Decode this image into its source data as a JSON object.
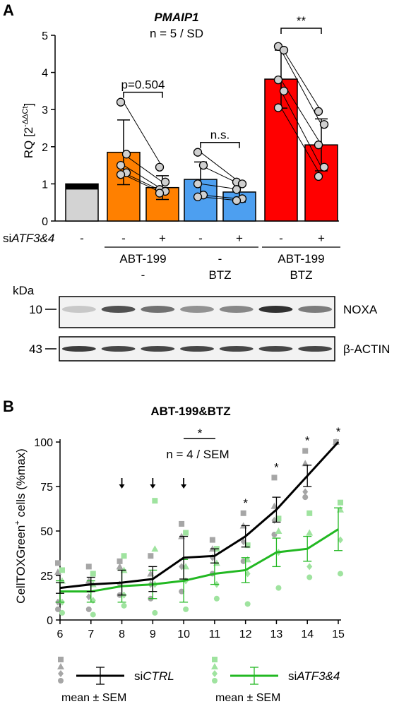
{
  "chart_data": [
    {
      "panel_label": "A",
      "type": "bar",
      "title": "PMAIP1",
      "subtitle": "n = 5 / SD",
      "ylabel": "RQ [2^-ΔΔCt]",
      "ylabel_main": "RQ [2",
      "ylabel_sup": "-ΔΔCt",
      "ylabel_close": "]",
      "ylim": [
        0,
        5
      ],
      "yticks": [
        "0",
        "1",
        "2",
        "3",
        "4",
        "5"
      ],
      "rows": {
        "siATF3&4": {
          "prefix": "si",
          "italic": "ATF3&4",
          "values": [
            "-",
            "-",
            "+",
            "-",
            "+",
            "-",
            "+"
          ]
        },
        "abt": {
          "values": [
            "ABT-199",
            "-",
            "ABT-199"
          ]
        },
        "btz": {
          "values": [
            "-",
            "BTZ",
            "BTZ"
          ]
        }
      },
      "bars": [
        {
          "value": 1.0,
          "sd": 0.05,
          "color": "#d3d3d3",
          "points": [
            1.0
          ]
        },
        {
          "value": 1.85,
          "sd": 0.87,
          "color": "#ff8000",
          "points": [
            3.2,
            1.8,
            1.5,
            1.3,
            1.25
          ]
        },
        {
          "value": 0.9,
          "sd": 0.32,
          "color": "#ff8000",
          "points": [
            1.45,
            1.05,
            0.85,
            0.8,
            0.75
          ]
        },
        {
          "value": 1.12,
          "sd": 0.47,
          "color": "#4d9ff0",
          "points": [
            1.85,
            1.5,
            1.0,
            0.7,
            0.65
          ]
        },
        {
          "value": 0.78,
          "sd": 0.27,
          "color": "#4d9ff0",
          "points": [
            1.05,
            1.0,
            0.85,
            0.6,
            0.55
          ]
        },
        {
          "value": 3.82,
          "sd": 0.78,
          "color": "#ff0000",
          "points": [
            4.7,
            4.6,
            3.8,
            3.5,
            3.05
          ]
        },
        {
          "value": 2.05,
          "sd": 0.7,
          "color": "#ff0000",
          "points": [
            2.95,
            2.6,
            2.05,
            1.45,
            1.2
          ]
        }
      ],
      "significance": [
        {
          "from": 1,
          "to": 2,
          "label": "p=0.504"
        },
        {
          "from": 3,
          "to": 4,
          "label": "n.s."
        },
        {
          "from": 5,
          "to": 6,
          "label": "**"
        }
      ],
      "western_blot": {
        "unit": "kDa",
        "rows": [
          {
            "marker": "10",
            "protein": "NOXA",
            "intensity": [
              0.25,
              0.8,
              0.65,
              0.5,
              0.55,
              0.95,
              0.6
            ]
          },
          {
            "marker": "43",
            "protein": "β-ACTIN",
            "intensity": [
              0.9,
              0.85,
              0.85,
              0.85,
              0.85,
              0.85,
              0.85
            ]
          }
        ]
      }
    },
    {
      "panel_label": "B",
      "type": "line",
      "title": "ABT-199&BTZ",
      "ylabel": "CellTOXGreen+ cells (%max)",
      "ylabel_main": "CellTOXGreen",
      "ylabel_sup": "+",
      "ylabel_rest": " cells (%max)",
      "annotation": "n = 4 / SEM",
      "top_star": "*",
      "xlim": [
        6,
        15
      ],
      "ylim": [
        0,
        100
      ],
      "x": [
        6,
        7,
        8,
        9,
        10,
        11,
        12,
        13,
        14,
        15
      ],
      "yticks": [
        "0",
        "25",
        "50",
        "75",
        "100"
      ],
      "xticks": [
        "6",
        "7",
        "8",
        "9",
        "10",
        "11",
        "12",
        "13",
        "14",
        "15"
      ],
      "arrows_at": [
        8,
        9,
        10
      ],
      "stars_at": [
        12,
        13,
        14,
        15
      ],
      "star_label": "*",
      "series": [
        {
          "name": "siCTRL",
          "name_prefix": "si",
          "name_italic": "CTRL",
          "color": "#000000",
          "dot_color": "#a6a6a6",
          "values": [
            18,
            20,
            21,
            23,
            35,
            36,
            47,
            62,
            81,
            100
          ],
          "sem": [
            3,
            4,
            7,
            7,
            12,
            4,
            6,
            7,
            6,
            0
          ],
          "points": [
            [
              32,
              27,
              10,
              6
            ],
            [
              30,
              22,
              13,
              6
            ],
            [
              33,
              30,
              20,
              14
            ],
            [
              36,
              26,
              20,
              12
            ],
            [
              54,
              47,
              30,
              16
            ],
            [
              45,
              40,
              35,
              26
            ],
            [
              60,
              53,
              44,
              33
            ],
            [
              80,
              64,
              56,
              48
            ],
            [
              95,
              88,
              72,
              69
            ],
            [
              100,
              100,
              100,
              100
            ]
          ]
        },
        {
          "name": "siATF3&4",
          "name_prefix": "si",
          "name_italic": "ATF3&4",
          "color": "#22b822",
          "dot_color": "#9fe39f",
          "values": [
            16,
            16,
            19,
            20,
            22,
            26,
            28,
            38,
            40,
            51
          ],
          "sem": [
            6,
            6,
            9,
            8,
            12,
            6,
            7,
            8,
            7,
            12
          ],
          "points": [
            [
              28,
              22,
              10,
              4
            ],
            [
              26,
              20,
              11,
              3
            ],
            [
              36,
              28,
              14,
              8
            ],
            [
              67,
              40,
              20,
              4
            ],
            [
              49,
              30,
              22,
              6
            ],
            [
              40,
              32,
              20,
              12
            ],
            [
              42,
              34,
              26,
              9
            ],
            [
              57,
              50,
              38,
              18
            ],
            [
              60,
              49,
              30,
              24
            ],
            [
              66,
              62,
              45,
              26
            ]
          ]
        }
      ],
      "legend": {
        "placement": "bottom",
        "caption": "mean ± SEM"
      }
    }
  ]
}
